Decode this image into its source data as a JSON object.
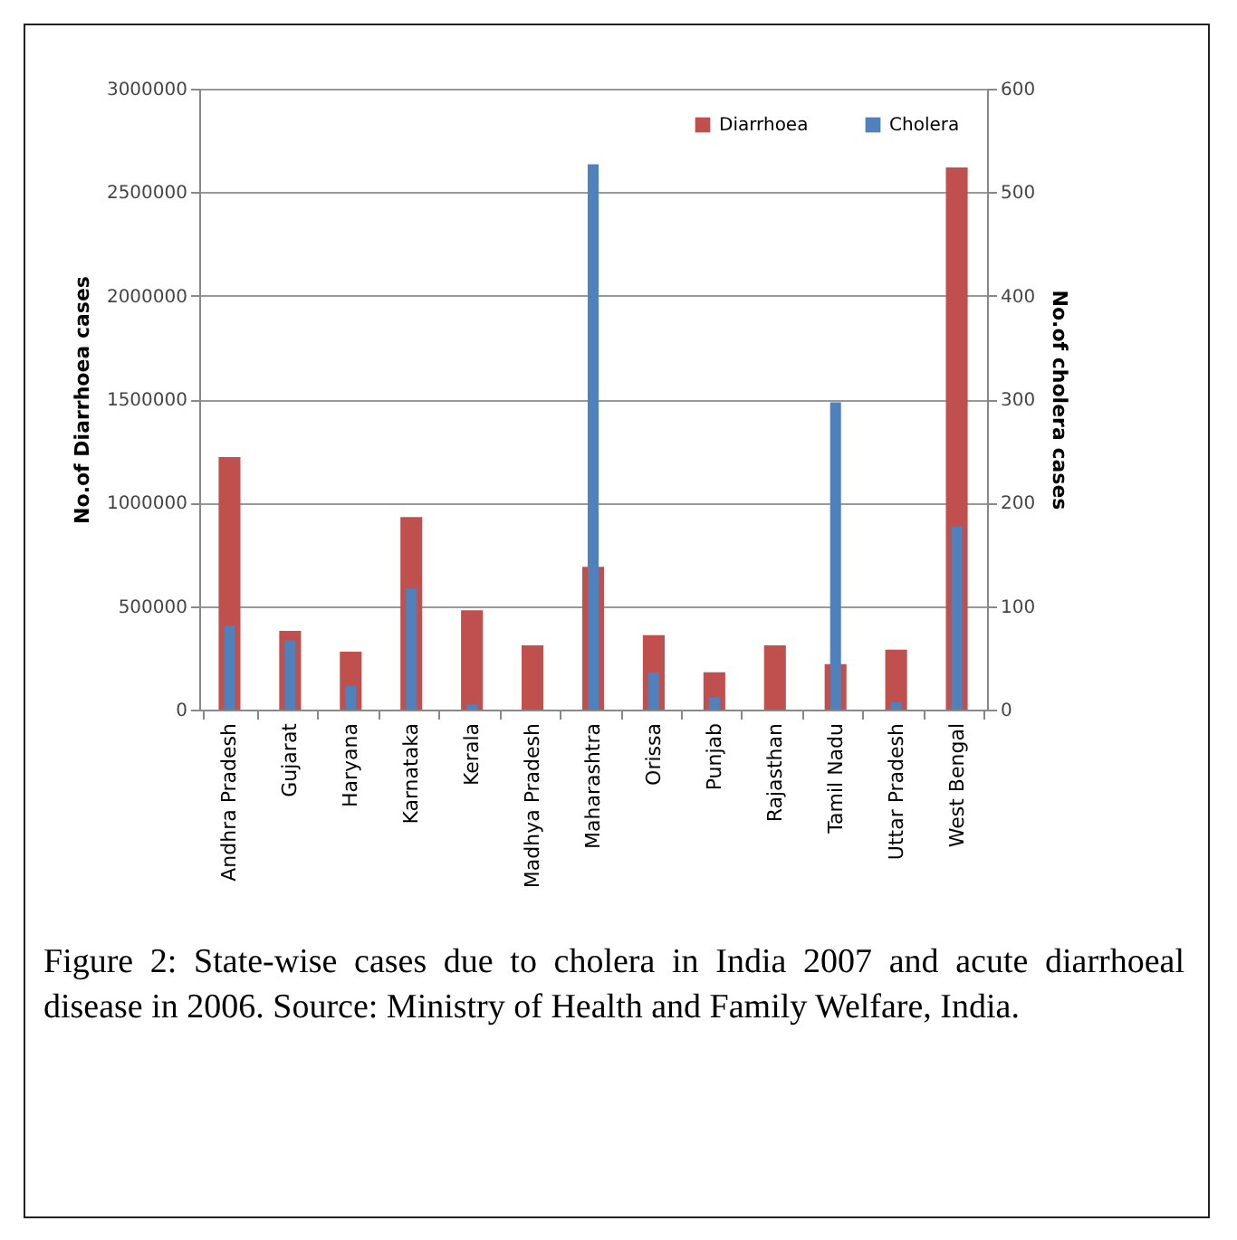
{
  "chart_data": {
    "type": "bar",
    "categories": [
      "Andhra Pradesh",
      "Gujarat",
      "Haryana",
      "Karnataka",
      "Kerala",
      "Madhya Pradesh",
      "Maharashtra",
      "Orissa",
      "Punjab",
      "Rajasthan",
      "Tamil Nadu",
      "Uttar Pradesh",
      "West Bengal"
    ],
    "series": [
      {
        "name": "Diarrhoea",
        "color": "#c0504d",
        "values": [
          1220000,
          380000,
          280000,
          930000,
          480000,
          310000,
          690000,
          360000,
          180000,
          310000,
          220000,
          290000,
          2620000
        ]
      },
      {
        "name": "Cholera",
        "color": "#4f81bd",
        "axis": "y2",
        "values": [
          81,
          67,
          23,
          117,
          5,
          0,
          527,
          36,
          12,
          0,
          297,
          7,
          177
        ]
      }
    ],
    "ylabel": "No.of Diarrhoea cases",
    "y2label": "No.of cholera cases",
    "ylim": [
      0,
      3000000
    ],
    "yticks": [
      0,
      500000,
      1000000,
      1500000,
      2000000,
      2500000,
      3000000
    ],
    "y2lim": [
      0,
      600
    ],
    "y2ticks": [
      0,
      100,
      200,
      300,
      400,
      500,
      600
    ],
    "grid": "y",
    "legend": "top right",
    "annotations": [
      "Figure 2: State-wise cases due to cholera in India 2007 and acute diarrhoeal disease in 2006. Source: Ministry of Health and Family Welfare, India."
    ]
  }
}
